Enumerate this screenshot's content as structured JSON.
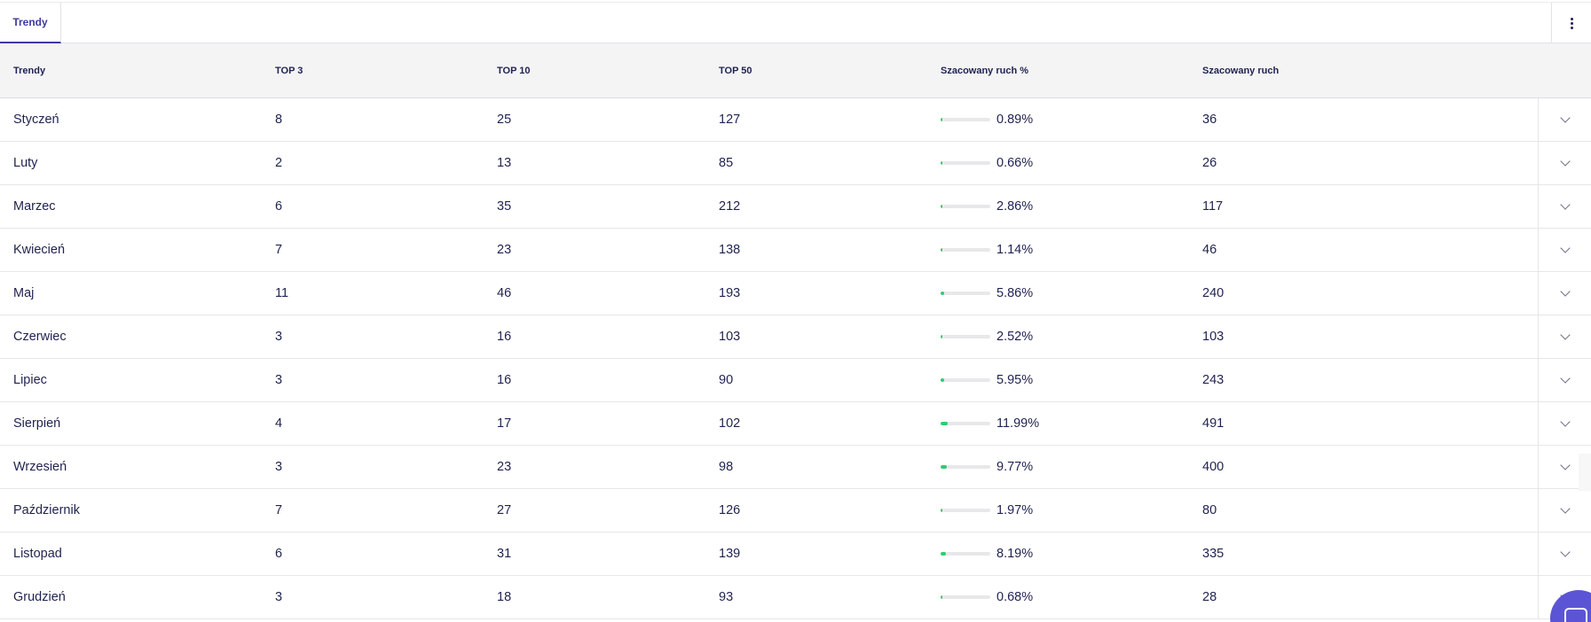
{
  "tabs": [
    {
      "label": "Trendy",
      "active": true
    }
  ],
  "table": {
    "headers": {
      "trend": "Trendy",
      "top3": "TOP 3",
      "top10": "TOP 10",
      "top50": "TOP 50",
      "traffic_pct": "Szacowany ruch %",
      "traffic": "Szacowany ruch"
    },
    "rows": [
      {
        "month": "Styczeń",
        "top3": "8",
        "top10": "25",
        "top50": "127",
        "traffic_pct": "0.89%",
        "pct_value": 0.89,
        "traffic": "36"
      },
      {
        "month": "Luty",
        "top3": "2",
        "top10": "13",
        "top50": "85",
        "traffic_pct": "0.66%",
        "pct_value": 0.66,
        "traffic": "26"
      },
      {
        "month": "Marzec",
        "top3": "6",
        "top10": "35",
        "top50": "212",
        "traffic_pct": "2.86%",
        "pct_value": 2.86,
        "traffic": "117"
      },
      {
        "month": "Kwiecień",
        "top3": "7",
        "top10": "23",
        "top50": "138",
        "traffic_pct": "1.14%",
        "pct_value": 1.14,
        "traffic": "46"
      },
      {
        "month": "Maj",
        "top3": "11",
        "top10": "46",
        "top50": "193",
        "traffic_pct": "5.86%",
        "pct_value": 5.86,
        "traffic": "240"
      },
      {
        "month": "Czerwiec",
        "top3": "3",
        "top10": "16",
        "top50": "103",
        "traffic_pct": "2.52%",
        "pct_value": 2.52,
        "traffic": "103"
      },
      {
        "month": "Lipiec",
        "top3": "3",
        "top10": "16",
        "top50": "90",
        "traffic_pct": "5.95%",
        "pct_value": 5.95,
        "traffic": "243"
      },
      {
        "month": "Sierpień",
        "top3": "4",
        "top10": "17",
        "top50": "102",
        "traffic_pct": "11.99%",
        "pct_value": 11.99,
        "traffic": "491"
      },
      {
        "month": "Wrzesień",
        "top3": "3",
        "top10": "23",
        "top50": "98",
        "traffic_pct": "9.77%",
        "pct_value": 9.77,
        "traffic": "400"
      },
      {
        "month": "Październik",
        "top3": "7",
        "top10": "27",
        "top50": "126",
        "traffic_pct": "1.97%",
        "pct_value": 1.97,
        "traffic": "80"
      },
      {
        "month": "Listopad",
        "top3": "6",
        "top10": "31",
        "top50": "139",
        "traffic_pct": "8.19%",
        "pct_value": 8.19,
        "traffic": "335"
      },
      {
        "month": "Grudzień",
        "top3": "3",
        "top10": "18",
        "top50": "93",
        "traffic_pct": "0.68%",
        "pct_value": 0.68,
        "traffic": "28"
      }
    ]
  },
  "colors": {
    "accent": "#3d3a9e",
    "bar_fill": "#2ecc71",
    "chat_bubble": "#5b55d6"
  },
  "icons": {
    "menu": "kebab-menu-icon",
    "expand": "chevron-down-icon",
    "chat": "chat-icon"
  }
}
